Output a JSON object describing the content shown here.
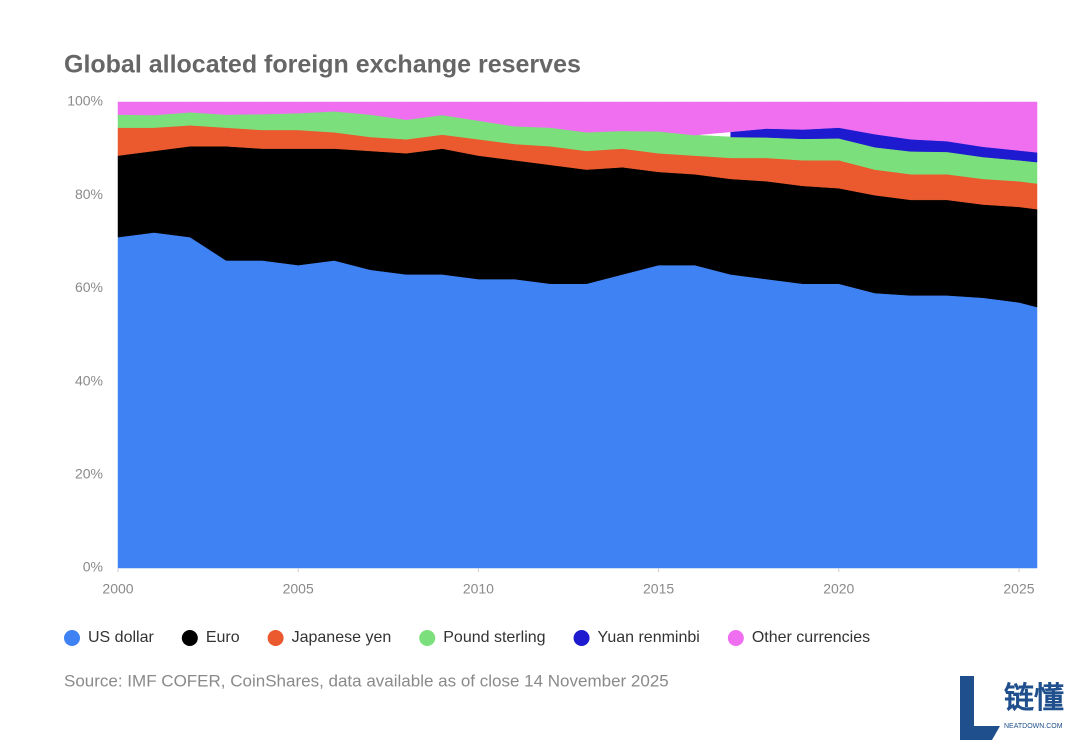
{
  "chart_data": {
    "type": "stacked_area",
    "title": "Global allocated foreign exchange reserves",
    "source": "Source: IMF COFER, CoinShares, data available as of close 14 November 2025",
    "x": [
      2000,
      2001,
      2002,
      2003,
      2004,
      2005,
      2006,
      2007,
      2008,
      2009,
      2010,
      2011,
      2012,
      2013,
      2014,
      2015,
      2016,
      2017,
      2018,
      2019,
      2020,
      2021,
      2022,
      2023,
      2024,
      2025,
      2025.5
    ],
    "xlim": [
      2000,
      2025.5
    ],
    "xticks": [
      2000,
      2005,
      2010,
      2015,
      2020,
      2025
    ],
    "ylim": [
      0,
      100
    ],
    "yticks": [
      {
        "value": 0,
        "label": "0%"
      },
      {
        "value": 20,
        "label": "20%"
      },
      {
        "value": 40,
        "label": "40%"
      },
      {
        "value": 60,
        "label": "60%"
      },
      {
        "value": 80,
        "label": "80%"
      },
      {
        "value": 100,
        "label": "100%"
      }
    ],
    "series": [
      {
        "name": "US dollar",
        "color": "#3f82f4",
        "values": [
          71,
          72,
          71,
          66,
          66,
          65,
          66,
          64,
          63,
          63,
          62,
          62,
          61,
          61,
          63,
          65,
          65,
          63,
          62,
          61,
          61,
          59,
          58.5,
          58.5,
          58,
          57,
          56
        ]
      },
      {
        "name": "Euro",
        "color": "#000000",
        "values": [
          17.5,
          17.5,
          19.5,
          24.5,
          24,
          25,
          24,
          25.5,
          26,
          27,
          26.5,
          25.5,
          25.5,
          24.5,
          23,
          20,
          19.5,
          20.5,
          21,
          21,
          20.5,
          21,
          20.5,
          20.5,
          20,
          20.5,
          21
        ]
      },
      {
        "name": "Japanese yen",
        "color": "#ea5a2e",
        "values": [
          6,
          5,
          4.5,
          4,
          4,
          4,
          3.5,
          3,
          3,
          3,
          3.5,
          3.5,
          4,
          4,
          4,
          4,
          4,
          4.5,
          5,
          5.5,
          6,
          5.5,
          5.5,
          5.5,
          5.5,
          5.5,
          5.5
        ]
      },
      {
        "name": "Pound sterling",
        "color": "#7be07b",
        "values": [
          2.8,
          2.7,
          2.8,
          2.8,
          3.4,
          3.6,
          4.5,
          4.8,
          4.2,
          4.2,
          4,
          3.8,
          4,
          4,
          3.8,
          4.7,
          4.4,
          4.5,
          4.4,
          4.6,
          4.7,
          4.8,
          4.9,
          4.8,
          4.7,
          4.5,
          4.6
        ]
      },
      {
        "name": "Yuan renminbi",
        "color": "#1d1ad0",
        "values": [
          null,
          null,
          null,
          null,
          null,
          null,
          null,
          null,
          null,
          null,
          null,
          null,
          null,
          null,
          null,
          null,
          null,
          1.1,
          1.9,
          2,
          2.3,
          2.8,
          2.6,
          2.3,
          2.2,
          2.1,
          2.1
        ]
      },
      {
        "name": "Other currencies",
        "color": "#ef6ff0",
        "values": [
          2.7,
          2.8,
          2.2,
          2.7,
          2.6,
          2.4,
          2,
          2.7,
          3.8,
          2.8,
          4,
          5.2,
          5.5,
          6.5,
          6.2,
          6.3,
          7.1,
          6.4,
          5.7,
          5.9,
          5.5,
          6.9,
          8,
          8.4,
          9.6,
          10.4,
          10.8
        ]
      }
    ],
    "logo": {
      "text": "链懂",
      "subtext": "NEATDOWN.COM"
    }
  }
}
